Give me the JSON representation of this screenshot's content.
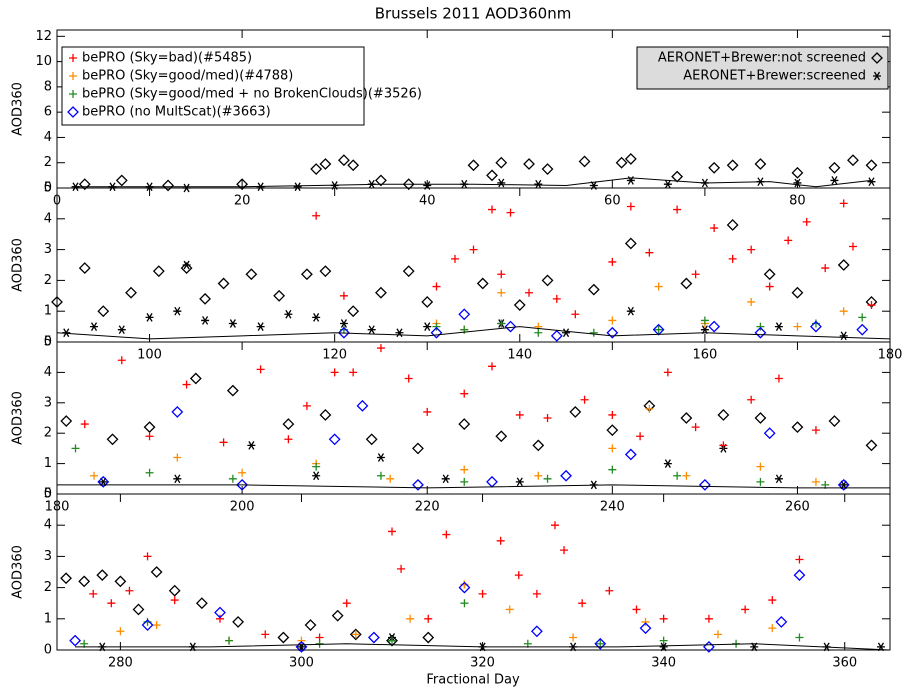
{
  "title": "Brussels 2011 AOD360nm",
  "xlabel": "Fractional Day",
  "chart_data": [
    {
      "type": "scatter",
      "ylabel": "AOD360",
      "xlim": [
        0,
        90
      ],
      "ylim": [
        0,
        12.5
      ],
      "xticks": [
        0,
        20,
        40,
        60,
        80
      ],
      "yticks": [
        0,
        2,
        4,
        6,
        8,
        10,
        12
      ],
      "series": [
        {
          "name": "bePRO (Sky=bad)(#5485)",
          "color": "#ff0000",
          "marker": "plus",
          "x": [],
          "values": []
        },
        {
          "name": "bePRO (Sky=good/med)(#4788)",
          "color": "#ff8c00",
          "marker": "plus",
          "x": [],
          "values": []
        },
        {
          "name": "bePRO (Sky=good/med + no BrokenClouds)(#3526)",
          "color": "#228b22",
          "marker": "plus",
          "x": [],
          "values": []
        },
        {
          "name": "bePRO (no MultScat)(#3663)",
          "color": "#0000ff",
          "marker": "diamond",
          "x": [],
          "values": []
        },
        {
          "name": "AERONET+Brewer:not screened",
          "color": "#000000",
          "marker": "diamond",
          "x": [
            3,
            7,
            12,
            20,
            28,
            29,
            31,
            32,
            35,
            38,
            45,
            47,
            48,
            51,
            53,
            57,
            61,
            62,
            67,
            71,
            73,
            76,
            80,
            84,
            86,
            88
          ],
          "values": [
            0.3,
            0.6,
            0.2,
            0.3,
            1.5,
            1.9,
            2.2,
            1.8,
            0.6,
            0.3,
            1.8,
            1.0,
            2.0,
            1.9,
            1.5,
            2.1,
            2.0,
            2.3,
            0.9,
            1.6,
            1.8,
            1.9,
            1.2,
            1.6,
            2.2,
            1.8
          ]
        },
        {
          "name": "AERONET+Brewer:screened",
          "color": "#000000",
          "marker": "asterisk",
          "x": [
            2,
            6,
            10,
            14,
            22,
            26,
            30,
            34,
            40,
            44,
            48,
            52,
            58,
            62,
            66,
            70,
            76,
            80,
            84,
            88
          ],
          "values": [
            0.1,
            0.1,
            0.1,
            0.0,
            0.1,
            0.1,
            0.2,
            0.3,
            0.2,
            0.3,
            0.4,
            0.3,
            0.2,
            0.6,
            0.3,
            0.4,
            0.5,
            0.4,
            0.6,
            0.5
          ]
        },
        {
          "color": "#000000",
          "marker": "line",
          "x": [
            2,
            10,
            20,
            28,
            35,
            45,
            55,
            62,
            70,
            77,
            82,
            88
          ],
          "values": [
            0.1,
            0.1,
            0.1,
            0.2,
            0.3,
            0.3,
            0.2,
            0.8,
            0.4,
            0.5,
            0.1,
            0.6
          ]
        }
      ]
    },
    {
      "type": "scatter",
      "ylabel": "AOD360",
      "xlim": [
        90,
        180
      ],
      "ylim": [
        0,
        5
      ],
      "xticks": [
        100,
        120,
        140,
        160,
        180
      ],
      "yticks": [
        0,
        1,
        2,
        3,
        4,
        5
      ],
      "series": [
        {
          "color": "#000000",
          "marker": "diamond",
          "x": [
            90,
            93,
            95,
            98,
            101,
            104,
            106,
            108,
            111,
            114,
            117,
            119,
            122,
            125,
            128,
            130,
            136,
            140,
            143,
            148,
            152,
            158,
            163,
            167,
            170,
            175,
            178
          ],
          "values": [
            1.3,
            2.4,
            1.0,
            1.6,
            2.3,
            2.4,
            1.4,
            1.9,
            2.2,
            1.5,
            2.2,
            2.3,
            1.0,
            1.6,
            2.3,
            1.3,
            1.9,
            1.2,
            2.0,
            1.7,
            3.2,
            1.9,
            3.8,
            2.2,
            1.6,
            2.5,
            1.3
          ]
        },
        {
          "color": "#000000",
          "marker": "asterisk",
          "x": [
            91,
            94,
            97,
            100,
            103,
            104,
            106,
            109,
            112,
            115,
            118,
            121,
            124,
            127,
            130,
            138,
            145,
            152,
            160,
            168,
            175
          ],
          "values": [
            0.3,
            0.5,
            0.4,
            0.8,
            1.0,
            2.5,
            0.7,
            0.6,
            0.5,
            0.9,
            0.8,
            0.6,
            0.4,
            0.3,
            0.5,
            0.6,
            0.3,
            1.0,
            0.4,
            0.5,
            0.2
          ]
        },
        {
          "color": "#ff0000",
          "marker": "plus",
          "x": [
            118,
            121,
            131,
            133,
            135,
            137,
            138,
            139,
            141,
            144,
            146,
            150,
            152,
            154,
            157,
            159,
            161,
            163,
            165,
            167,
            169,
            171,
            173,
            175,
            176,
            178
          ],
          "values": [
            4.1,
            1.5,
            1.8,
            2.7,
            3.0,
            4.3,
            2.2,
            4.2,
            1.6,
            1.4,
            0.9,
            2.6,
            4.4,
            2.9,
            4.3,
            2.2,
            3.7,
            2.7,
            3.0,
            1.8,
            3.3,
            3.9,
            2.4,
            4.5,
            3.1,
            1.2
          ]
        },
        {
          "color": "#ff8c00",
          "marker": "plus",
          "x": [
            131,
            134,
            138,
            142,
            150,
            155,
            160,
            165,
            170,
            175
          ],
          "values": [
            0.6,
            0.4,
            1.6,
            0.5,
            0.7,
            1.8,
            0.6,
            1.3,
            0.5,
            1.0
          ]
        },
        {
          "color": "#228b22",
          "marker": "plus",
          "x": [
            121,
            131,
            134,
            138,
            142,
            148,
            155,
            160,
            166,
            172,
            177
          ],
          "values": [
            0.4,
            0.5,
            0.4,
            0.6,
            0.3,
            0.3,
            0.4,
            0.7,
            0.5,
            0.6,
            0.8
          ]
        },
        {
          "color": "#0000ff",
          "marker": "diamond",
          "x": [
            121,
            131,
            134,
            139,
            144,
            150,
            155,
            161,
            166,
            172,
            177
          ],
          "values": [
            0.3,
            0.3,
            0.9,
            0.5,
            0.2,
            0.3,
            0.4,
            0.5,
            0.3,
            0.5,
            0.4
          ]
        },
        {
          "color": "#000000",
          "marker": "line",
          "x": [
            90,
            100,
            110,
            120,
            130,
            140,
            150,
            160,
            170,
            180
          ],
          "values": [
            0.3,
            0.1,
            0.2,
            0.3,
            0.2,
            0.5,
            0.2,
            0.3,
            0.2,
            0.1
          ]
        }
      ]
    },
    {
      "type": "scatter",
      "ylabel": "AOD360",
      "xlim": [
        180,
        270
      ],
      "ylim": [
        0,
        5
      ],
      "xticks": [
        180,
        200,
        220,
        240,
        260
      ],
      "yticks": [
        0,
        1,
        2,
        3,
        4,
        5
      ],
      "series": [
        {
          "color": "#000000",
          "marker": "diamond",
          "x": [
            181,
            186,
            190,
            195,
            199,
            205,
            209,
            214,
            219,
            224,
            228,
            232,
            236,
            240,
            244,
            248,
            252,
            256,
            260,
            264,
            268
          ],
          "values": [
            2.4,
            1.8,
            2.2,
            3.8,
            3.4,
            2.3,
            2.6,
            1.8,
            1.5,
            2.3,
            1.9,
            1.6,
            2.7,
            2.1,
            2.9,
            2.5,
            2.6,
            2.5,
            2.2,
            2.4,
            1.6
          ]
        },
        {
          "color": "#000000",
          "marker": "asterisk",
          "x": [
            185,
            193,
            201,
            208,
            215,
            222,
            230,
            238,
            246,
            252,
            258,
            265
          ],
          "values": [
            0.4,
            0.5,
            1.6,
            0.6,
            1.2,
            0.5,
            0.4,
            0.3,
            1.0,
            1.5,
            0.5,
            0.3
          ]
        },
        {
          "color": "#ff0000",
          "marker": "plus",
          "x": [
            183,
            187,
            190,
            194,
            198,
            202,
            205,
            207,
            210,
            212,
            215,
            218,
            220,
            224,
            227,
            230,
            233,
            237,
            240,
            243,
            246,
            249,
            252,
            255,
            258,
            262
          ],
          "values": [
            2.3,
            4.4,
            1.9,
            3.6,
            1.7,
            4.1,
            1.8,
            2.9,
            4.0,
            4.0,
            4.8,
            3.8,
            2.7,
            3.3,
            4.2,
            2.6,
            2.5,
            3.1,
            2.6,
            1.9,
            4.0,
            2.2,
            1.6,
            3.1,
            3.8,
            2.1
          ]
        },
        {
          "color": "#ff8c00",
          "marker": "plus",
          "x": [
            184,
            193,
            200,
            208,
            216,
            224,
            232,
            240,
            244,
            248,
            256,
            262
          ],
          "values": [
            0.6,
            1.2,
            0.7,
            1.0,
            0.5,
            0.8,
            0.6,
            1.5,
            2.8,
            0.6,
            0.9,
            0.4
          ]
        },
        {
          "color": "#228b22",
          "marker": "plus",
          "x": [
            182,
            190,
            199,
            208,
            215,
            224,
            233,
            240,
            247,
            256,
            263
          ],
          "values": [
            1.5,
            0.7,
            0.5,
            0.9,
            0.6,
            0.4,
            0.5,
            0.8,
            0.6,
            0.4,
            0.3
          ]
        },
        {
          "color": "#0000ff",
          "marker": "diamond",
          "x": [
            185,
            193,
            200,
            210,
            213,
            219,
            227,
            235,
            242,
            250,
            257,
            265
          ],
          "values": [
            0.4,
            2.7,
            0.3,
            1.8,
            2.9,
            0.3,
            0.4,
            0.6,
            1.3,
            0.3,
            2.0,
            0.3
          ]
        },
        {
          "color": "#000000",
          "marker": "line",
          "x": [
            180,
            200,
            220,
            240,
            260,
            270
          ],
          "values": [
            0.3,
            0.3,
            0.2,
            0.3,
            0.2,
            0.2
          ]
        }
      ]
    },
    {
      "type": "scatter",
      "ylabel": "AOD360",
      "xlim": [
        273,
        365
      ],
      "ylim": [
        0,
        5
      ],
      "xticks": [
        280,
        300,
        320,
        340,
        360
      ],
      "yticks": [
        0,
        1,
        2,
        3,
        4,
        5
      ],
      "series": [
        {
          "color": "#000000",
          "marker": "diamond",
          "x": [
            274,
            276,
            278,
            280,
            282,
            284,
            286,
            289,
            293,
            298,
            301,
            304,
            306,
            310,
            314
          ],
          "values": [
            2.3,
            2.2,
            2.4,
            2.2,
            1.3,
            2.5,
            1.9,
            1.5,
            0.9,
            0.4,
            0.8,
            1.1,
            0.5,
            0.3,
            0.4
          ]
        },
        {
          "color": "#000000",
          "marker": "asterisk",
          "x": [
            278,
            288,
            300,
            310,
            320,
            330,
            340,
            350,
            358,
            364
          ],
          "values": [
            0.1,
            0.1,
            0.1,
            0.4,
            0.1,
            0.1,
            0.1,
            0.1,
            0.1,
            0.1
          ]
        },
        {
          "color": "#ff0000",
          "marker": "plus",
          "x": [
            277,
            279,
            281,
            283,
            286,
            291,
            296,
            302,
            305,
            310,
            311,
            314,
            316,
            318,
            320,
            322,
            324,
            326,
            328,
            329,
            331,
            334,
            337,
            340,
            345,
            349,
            352,
            355
          ],
          "values": [
            1.8,
            1.5,
            1.9,
            3.0,
            1.6,
            1.0,
            0.5,
            0.4,
            1.5,
            3.8,
            2.6,
            1.0,
            3.7,
            2.1,
            1.8,
            3.5,
            2.4,
            1.8,
            4.0,
            3.2,
            1.5,
            1.9,
            1.3,
            1.0,
            1.0,
            1.3,
            1.6,
            2.9
          ]
        },
        {
          "color": "#ff8c00",
          "marker": "plus",
          "x": [
            280,
            284,
            292,
            300,
            306,
            312,
            318,
            323,
            330,
            338,
            346,
            352
          ],
          "values": [
            0.6,
            0.8,
            0.3,
            0.3,
            0.5,
            1.0,
            2.1,
            1.3,
            0.4,
            0.9,
            0.5,
            0.7
          ]
        },
        {
          "color": "#228b22",
          "marker": "plus",
          "x": [
            276,
            283,
            292,
            302,
            310,
            318,
            325,
            333,
            340,
            348,
            355
          ],
          "values": [
            0.2,
            0.9,
            0.3,
            0.2,
            0.3,
            1.5,
            0.2,
            0.2,
            0.3,
            0.2,
            0.4
          ]
        },
        {
          "color": "#0000ff",
          "marker": "diamond",
          "x": [
            275,
            283,
            291,
            300,
            308,
            318,
            326,
            333,
            338,
            345,
            353,
            355
          ],
          "values": [
            0.3,
            0.8,
            1.2,
            0.1,
            0.4,
            2.0,
            0.6,
            0.2,
            0.7,
            0.1,
            0.9,
            2.4
          ]
        },
        {
          "color": "#000000",
          "marker": "line",
          "x": [
            275,
            290,
            305,
            320,
            335,
            350,
            365
          ],
          "values": [
            0.1,
            0.1,
            0.2,
            0.1,
            0.1,
            0.2,
            0.0
          ]
        }
      ]
    }
  ]
}
